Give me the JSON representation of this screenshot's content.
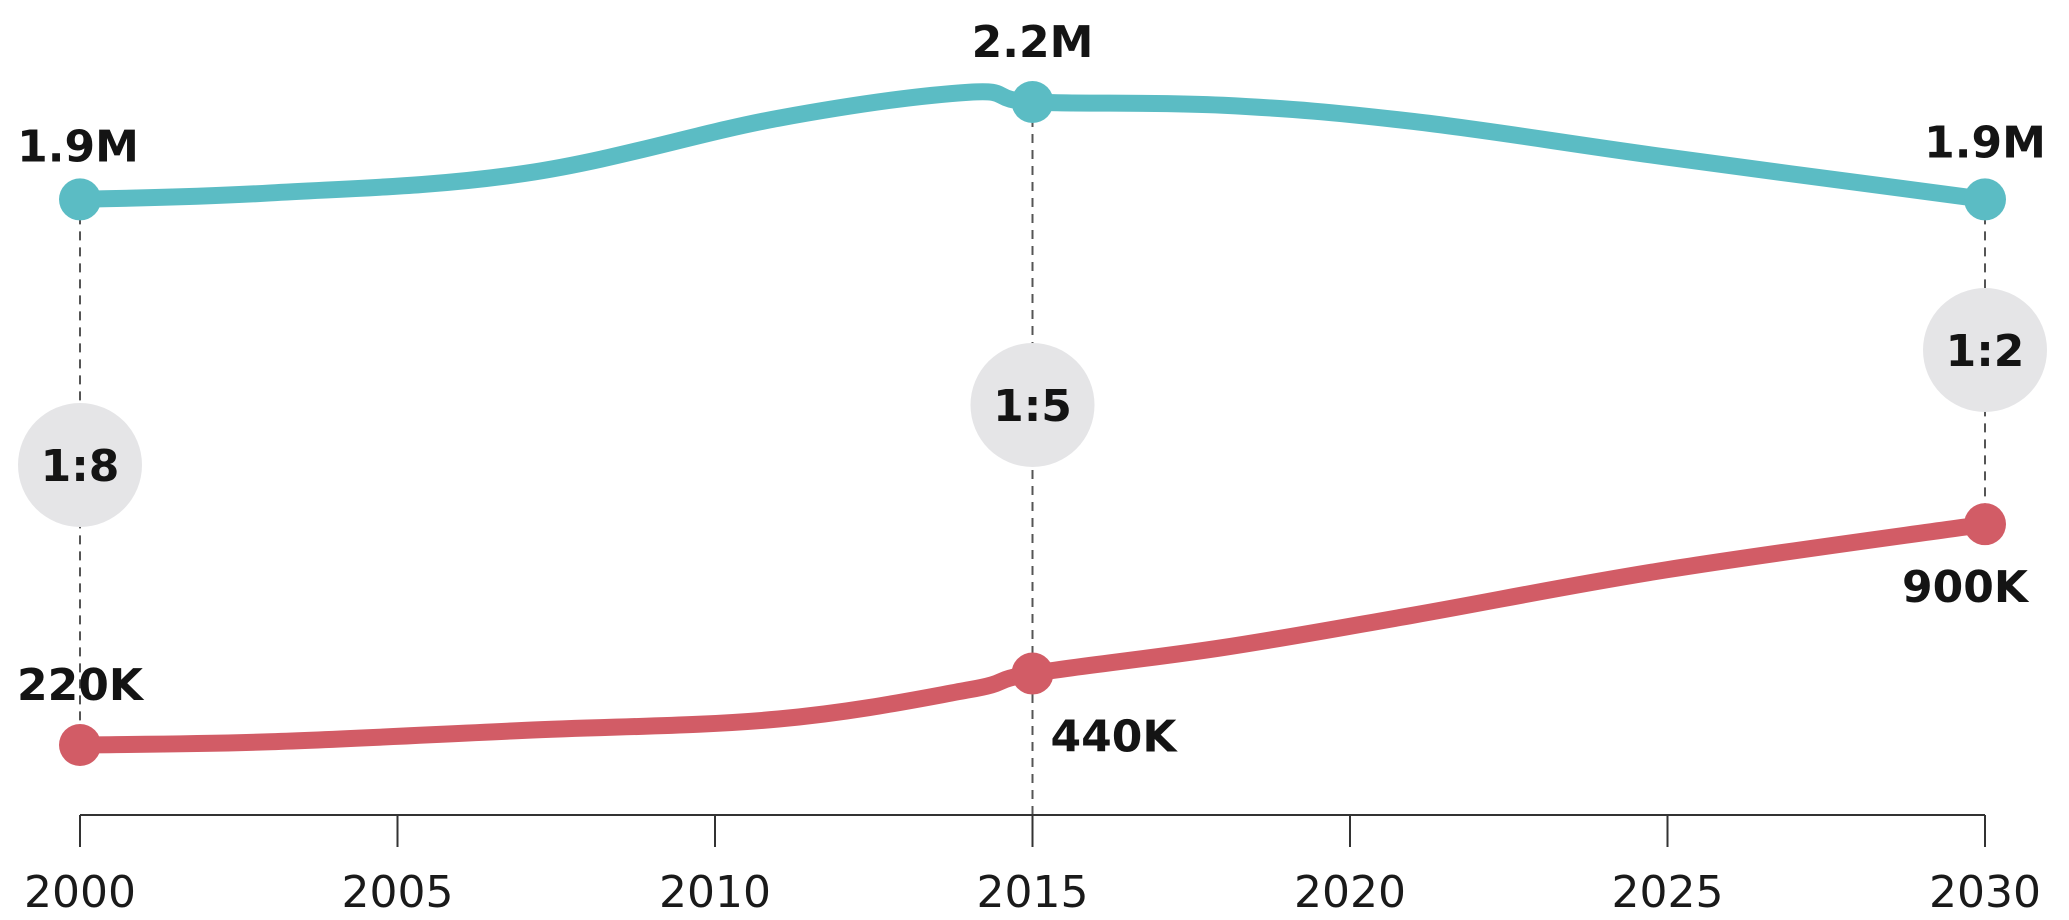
{
  "chart_data": {
    "type": "line",
    "x": [
      2000,
      2003,
      2007,
      2011,
      2014,
      2015,
      2018,
      2021,
      2025,
      2030
    ],
    "xticks": [
      "2000",
      "2005",
      "2010",
      "2015",
      "2020",
      "2025",
      "2030"
    ],
    "xlim": [
      2000,
      2030
    ],
    "ylim": [
      0,
      2300000
    ],
    "grid": false,
    "series": [
      {
        "values": [
          1900000,
          1920000,
          1980000,
          2150000,
          2230000,
          2200000,
          2190000,
          2140000,
          2030000,
          1900000
        ],
        "color": "#5bbcc4",
        "markers": [
          {
            "x": 2000,
            "y": 1900000,
            "label": "1.9M"
          },
          {
            "x": 2015,
            "y": 2200000,
            "label": "2.2M"
          },
          {
            "x": 2030,
            "y": 1900000,
            "label": "1.9M"
          }
        ]
      },
      {
        "values": [
          220000,
          230000,
          265000,
          300000,
          390000,
          440000,
          520000,
          620000,
          760000,
          900000
        ],
        "color": "#d25c66",
        "markers": [
          {
            "x": 2000,
            "y": 220000,
            "label": "220K"
          },
          {
            "x": 2015,
            "y": 440000,
            "label": "440K"
          },
          {
            "x": 2030,
            "y": 900000,
            "label": "900K"
          }
        ]
      }
    ],
    "ratios": [
      {
        "x": 2000,
        "label": "1:8"
      },
      {
        "x": 2015,
        "label": "1:5"
      },
      {
        "x": 2030,
        "label": "1:2"
      }
    ],
    "colors": {
      "axis": "#333333",
      "dashed_line": "#555555",
      "ratio_circle": "#e5e5e7",
      "text": "#141414"
    }
  }
}
